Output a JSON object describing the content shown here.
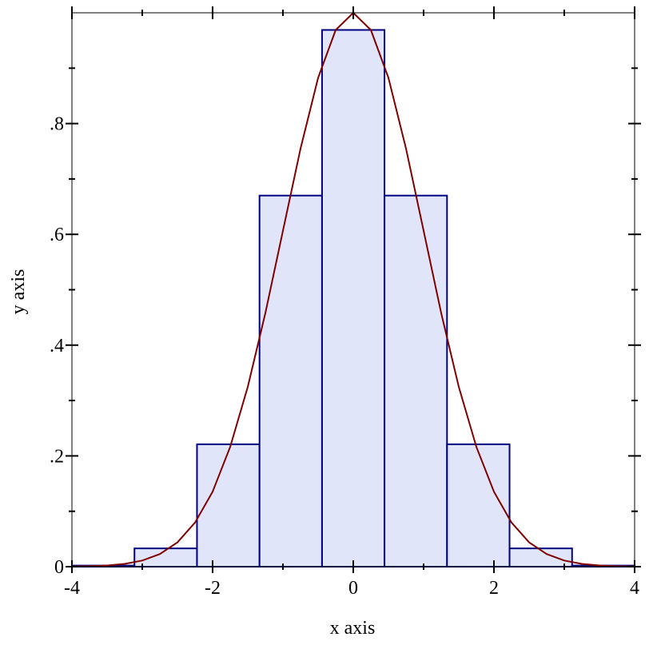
{
  "chart_data": [
    {
      "type": "histogram",
      "x_label": "x axis",
      "y_label": "y axis",
      "bins": [
        -4,
        -3.111,
        -2.222,
        -1.333,
        -0.444,
        0.444,
        1.333,
        2.222,
        3.111,
        4
      ],
      "values": [
        0.002,
        0.033,
        0.221,
        0.67,
        0.969,
        0.67,
        0.221,
        0.033,
        0.002
      ],
      "color": "#e0e5fa",
      "edge_color": "#000080",
      "xlim": [
        -4,
        4
      ],
      "ylim": [
        0,
        1
      ],
      "xticks": [
        -4,
        -2,
        0,
        2,
        4
      ],
      "xminorticks": [
        -3,
        -1,
        1,
        3
      ],
      "yticks": [
        0,
        {
          "value": 0.2,
          "label": ".2"
        },
        {
          "value": 0.4,
          "label": ".4"
        },
        {
          "value": 0.6,
          "label": ".6"
        },
        {
          "value": 0.8,
          "label": ".8"
        }
      ],
      "yminorticks": [
        0.1,
        0.3,
        0.5,
        0.7,
        0.9
      ]
    },
    {
      "type": "line",
      "color": "#800000",
      "x": [
        -4,
        -3.75,
        -3.5,
        -3.25,
        -3,
        -2.75,
        -2.5,
        -2.25,
        -2,
        -1.75,
        -1.5,
        -1.25,
        -1,
        -0.75,
        -0.5,
        -0.25,
        0,
        0.25,
        0.5,
        0.75,
        1,
        1.25,
        1.5,
        1.75,
        2,
        2.25,
        2.5,
        2.75,
        3,
        3.25,
        3.5,
        3.75,
        4
      ],
      "values": [
        0.00034,
        0.00088,
        0.0022,
        0.0051,
        0.0111,
        0.0228,
        0.0439,
        0.0796,
        0.1353,
        0.2163,
        0.3247,
        0.4578,
        0.6065,
        0.7548,
        0.8825,
        0.969,
        1,
        0.969,
        0.8825,
        0.7548,
        0.6065,
        0.4578,
        0.3247,
        0.2163,
        0.1353,
        0.0796,
        0.0439,
        0.0228,
        0.0111,
        0.0051,
        0.0022,
        0.00088,
        0.00034
      ]
    }
  ]
}
